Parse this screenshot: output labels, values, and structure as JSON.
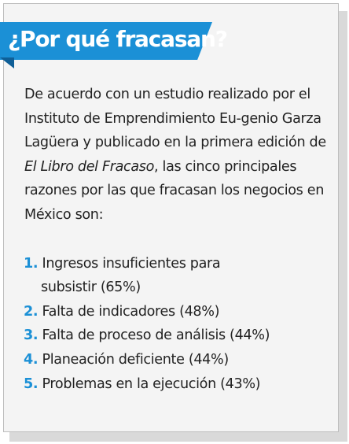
{
  "title": "¿Por qué fracasan?",
  "intro": {
    "text_before": "De acuerdo con un estudio realizado por el Instituto de Emprendimiento Eu-genio Garza Lagüera y publicado en la primera edición de ",
    "book_title": "El Libro del Fracaso",
    "text_after": ", las cinco principales razones por las que fracasan los negocios en México son:"
  },
  "reasons": [
    {
      "number": "1.",
      "line1": "Ingresos insuficientes para",
      "line2": "subsistir (65%)"
    },
    {
      "number": "2.",
      "text": "Falta de indicadores (48%)"
    },
    {
      "number": "3.",
      "text": "Falta de proceso de análisis (44%)"
    },
    {
      "number": "4.",
      "text": "Planeación deficiente (44%)"
    },
    {
      "number": "5.",
      "text": "Problemas en la ejecución (43%)"
    }
  ],
  "colors": {
    "accent": "#1b90d6",
    "text": "#222222",
    "card": "#f4f4f4"
  }
}
